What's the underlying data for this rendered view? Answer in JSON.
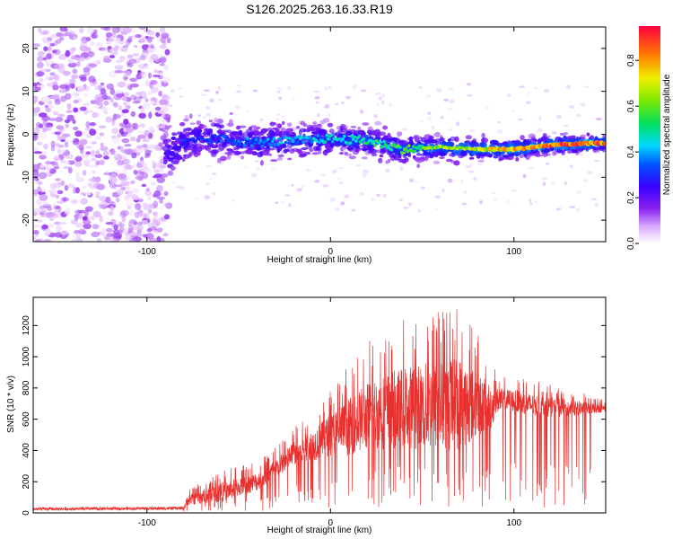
{
  "chart_data": [
    {
      "type": "heatmap",
      "title": "S126.2025.263.16.33.R19",
      "xlabel": "Height of straight line (km)",
      "ylabel": "Frequency (Hz)",
      "xlim": [
        -162,
        150
      ],
      "ylim": [
        -25,
        25
      ],
      "xticks": [
        -100,
        0,
        100
      ],
      "yticks": [
        -20,
        -10,
        0,
        10,
        20
      ],
      "colorbar": {
        "label": "Normalized spectral amplitude",
        "range": [
          0.0,
          0.95
        ],
        "ticks": [
          0.0,
          0.2,
          0.4,
          0.6,
          0.8
        ],
        "tick_labels": [
          "0.0",
          "0.2",
          "0.4",
          "0.6",
          "0.8"
        ]
      },
      "ridge": {
        "description": "dominant frequency track",
        "x": [
          -90,
          -80,
          -60,
          -40,
          -20,
          0,
          20,
          40,
          60,
          80,
          100,
          120,
          150
        ],
        "frequency": [
          -5,
          -2,
          -1,
          -2,
          -1.5,
          -1,
          -1.5,
          -3.5,
          -3,
          -3.5,
          -3.5,
          -2.5,
          -2
        ],
        "peak_amplitude": [
          0.25,
          0.3,
          0.35,
          0.4,
          0.45,
          0.5,
          0.55,
          0.6,
          0.7,
          0.75,
          0.85,
          0.9,
          0.9
        ]
      },
      "noise_region": {
        "x_range": [
          -162,
          -88
        ],
        "frequency_range": [
          -25,
          25
        ],
        "amplitude": [
          0.02,
          0.15
        ]
      }
    },
    {
      "type": "line",
      "xlabel": "Height of straight line (km)",
      "ylabel": "SNR (10 * v/v)",
      "xlim": [
        -162,
        150
      ],
      "ylim": [
        0,
        1380
      ],
      "xticks": [
        -100,
        0,
        100
      ],
      "yticks": [
        0,
        200,
        400,
        600,
        800,
        1000,
        1200
      ],
      "series": [
        {
          "name": "SNR",
          "color": "#e8312f",
          "envelope_x": [
            -162,
            -80,
            -78,
            -60,
            -40,
            -30,
            -20,
            -10,
            0,
            10,
            20,
            30,
            40,
            50,
            60,
            70,
            80,
            88,
            90,
            100,
            110,
            120,
            130,
            140,
            150
          ],
          "envelope_mean": [
            25,
            30,
            80,
            130,
            200,
            280,
            380,
            430,
            500,
            550,
            620,
            650,
            680,
            680,
            690,
            700,
            690,
            680,
            720,
            720,
            690,
            680,
            670,
            670,
            670
          ],
          "envelope_max": [
            45,
            50,
            150,
            270,
            330,
            420,
            550,
            650,
            800,
            950,
            1100,
            1200,
            1250,
            1300,
            1330,
            1380,
            1150,
            1000,
            900,
            880,
            850,
            820,
            800,
            760,
            720
          ]
        }
      ]
    }
  ]
}
